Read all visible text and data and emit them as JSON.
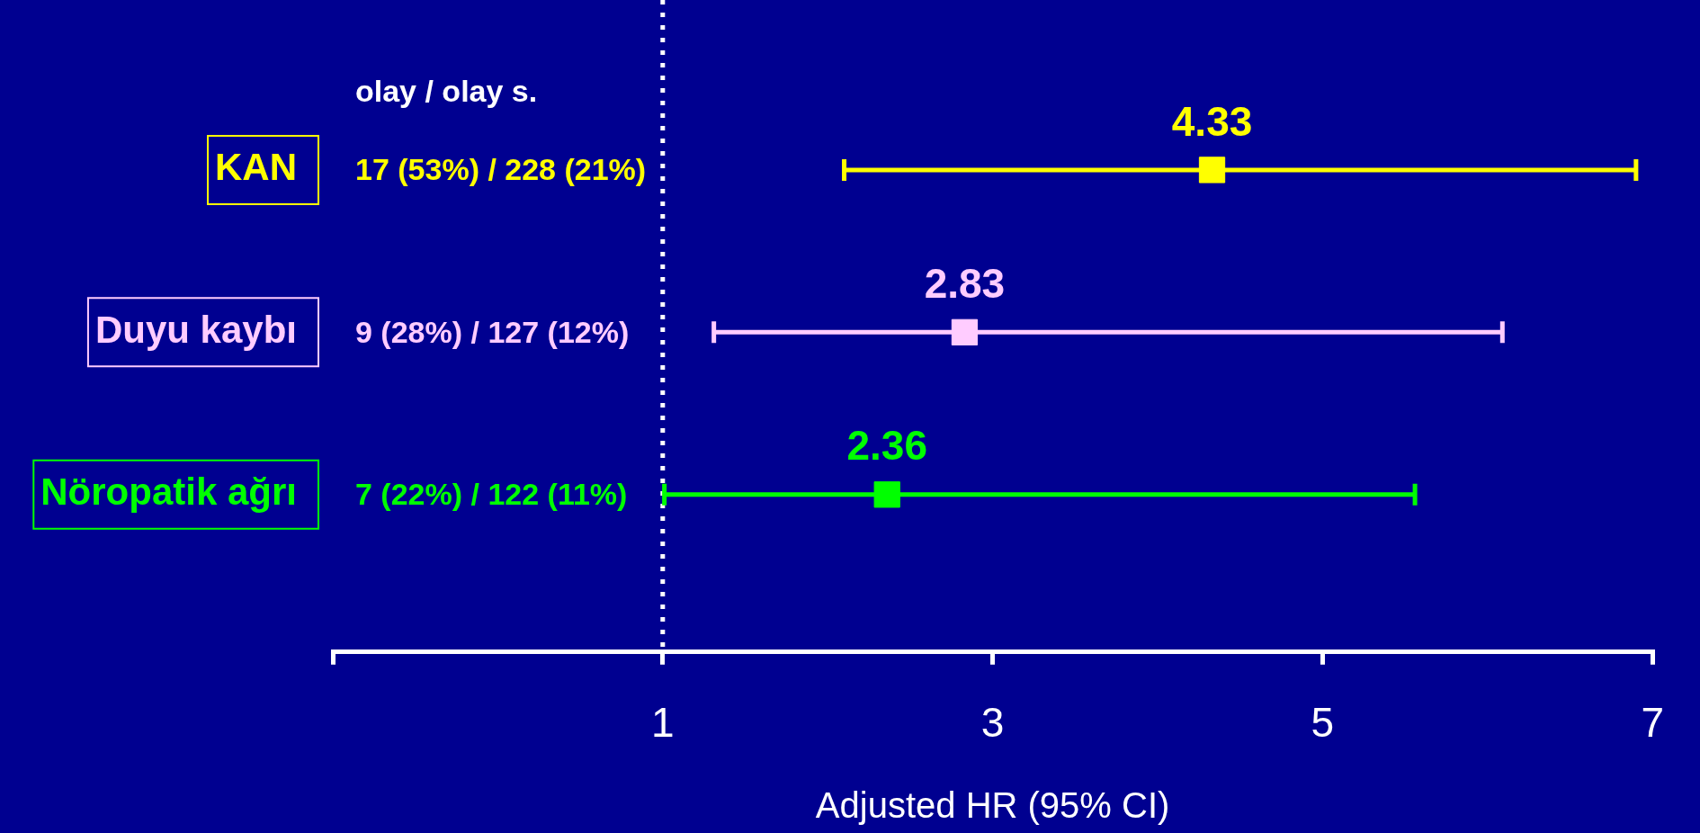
{
  "chart_data": {
    "type": "scatter",
    "orientation": "horizontal",
    "xlabel": "Adjusted HR (95% CI)",
    "categories": [
      "KAN",
      "Duyu kaybı",
      "Nöropatik ağrı"
    ],
    "values": [
      4.33,
      2.83,
      2.36
    ],
    "colors": [
      "#ffff00",
      "#ffccff",
      "#00ff00"
    ],
    "errors": [
      [
        2.1,
        6.9
      ],
      [
        1.31,
        6.09
      ],
      [
        1.01,
        5.56
      ]
    ],
    "xlim": [
      -1,
      7
    ],
    "xticks": [
      {
        "value": -1,
        "label": null
      },
      1,
      3,
      5,
      7
    ],
    "ref_lines": [
      {
        "axis": "x",
        "value": 1,
        "color": "#ffffff",
        "line_style": "dotted"
      }
    ],
    "annotations": [
      "olay / olay s.",
      "17 (53%) / 228 (21%)",
      "9 (28%) / 127 (12%)",
      "7 (22%) / 122 (11%)"
    ],
    "data_labels": true,
    "marker": "square",
    "grid": false,
    "legend": false
  }
}
